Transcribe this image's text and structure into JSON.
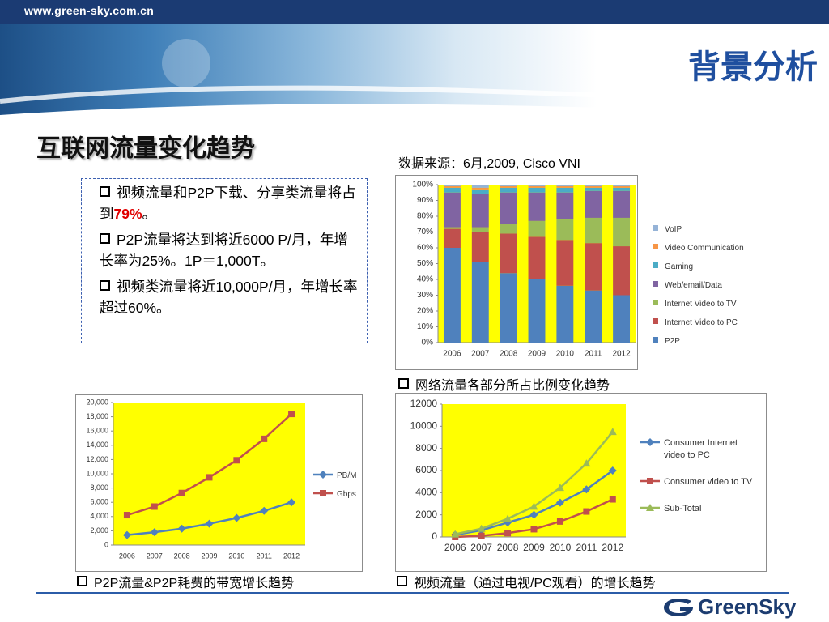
{
  "header": {
    "url": "www.green-sky.com.cn",
    "title": "背景分析"
  },
  "subtitle": "互联网流量变化趋势",
  "source": "数据来源：6月,2009, Cisco VNI",
  "bullets": [
    [
      "视频流量和P2P下载、分享类流量将占到",
      "79%",
      "。"
    ],
    [
      "P2P流量将达到将近6000 P/月，年增长率为25%。1P＝1,000T。"
    ],
    [
      "视频类流量将近10,000P/月，年增长率超过60%。"
    ]
  ],
  "captions": [
    "网络流量各部分所占比例变化趋势",
    "P2P流量&P2P耗费的带宽增长趋势",
    "视频流量（通过电视/PC观看）的增长趋势"
  ],
  "logo": "GreenSky",
  "chart_data": [
    {
      "type": "stacked_bar",
      "plot_color": "#ffff00",
      "categories": [
        "2006",
        "2007",
        "2008",
        "2009",
        "2010",
        "2011",
        "2012"
      ],
      "ylim": [
        0,
        100
      ],
      "yticks": [
        {
          "value": 0,
          "label": "0%"
        },
        {
          "value": 10,
          "label": "10%"
        },
        {
          "value": 20,
          "label": "20%"
        },
        {
          "value": 30,
          "label": "30%"
        },
        {
          "value": 40,
          "label": "40%"
        },
        {
          "value": 50,
          "label": "50%"
        },
        {
          "value": 60,
          "label": "60%"
        },
        {
          "value": 70,
          "label": "70%"
        },
        {
          "value": 80,
          "label": "80%"
        },
        {
          "value": 90,
          "label": "90%"
        },
        {
          "value": 100,
          "label": "100%"
        }
      ],
      "series": [
        {
          "name": "P2P",
          "color": "#4f81bd",
          "values": [
            60,
            51,
            44,
            40,
            36,
            33,
            30
          ]
        },
        {
          "name": "Internet Video to PC",
          "color": "#c0504d",
          "values": [
            12,
            19,
            25,
            27,
            29,
            30,
            31
          ]
        },
        {
          "name": "Internet Video to TV",
          "color": "#9bbb59",
          "values": [
            1,
            3,
            6,
            10,
            13,
            16,
            18
          ]
        },
        {
          "name": "Web/email/Data",
          "color": "#8064a2",
          "values": [
            22,
            21,
            20,
            18,
            17,
            17,
            17
          ]
        },
        {
          "name": "Gaming",
          "color": "#4bacc6",
          "values": [
            3,
            3,
            3,
            3,
            3,
            2,
            2
          ]
        },
        {
          "name": "Video Communication",
          "color": "#f79646",
          "values": [
            1,
            1,
            1,
            1,
            1,
            1,
            1
          ]
        },
        {
          "name": "VoIP",
          "color": "#95b3d7",
          "values": [
            1,
            2,
            1,
            1,
            1,
            1,
            1
          ]
        }
      ]
    },
    {
      "type": "line",
      "plot_color": "#ffff00",
      "categories": [
        "2006",
        "2007",
        "2008",
        "2009",
        "2010",
        "2011",
        "2012"
      ],
      "ylim": [
        0,
        20000
      ],
      "yticks": [
        0,
        {
          "value": 2000,
          "label": "2,000"
        },
        {
          "value": 4000,
          "label": "4,000"
        },
        {
          "value": 6000,
          "label": "6,000"
        },
        {
          "value": 8000,
          "label": "8,000"
        },
        {
          "value": 10000,
          "label": "10,000"
        },
        {
          "value": 12000,
          "label": "12,000"
        },
        {
          "value": 14000,
          "label": "14,000"
        },
        {
          "value": 16000,
          "label": "16,000"
        },
        {
          "value": 18000,
          "label": "18,000"
        },
        {
          "value": 20000,
          "label": "20,000"
        }
      ],
      "series": [
        {
          "name": "PB/M",
          "color": "#4f81bd",
          "marker": "diamond",
          "values": [
            1400,
            1800,
            2300,
            3000,
            3800,
            4800,
            6000
          ]
        },
        {
          "name": "Gbps",
          "color": "#c0504d",
          "marker": "square",
          "values": [
            4200,
            5400,
            7300,
            9500,
            11900,
            14900,
            18400
          ]
        }
      ]
    },
    {
      "type": "line",
      "plot_color": "#ffff00",
      "categories": [
        "2006",
        "2007",
        "2008",
        "2009",
        "2010",
        "2011",
        "2012"
      ],
      "ylim": [
        0,
        12000
      ],
      "yticks": [
        0,
        2000,
        4000,
        6000,
        8000,
        10000,
        12000
      ],
      "series": [
        {
          "name": "Consumer Internet video to PC",
          "color": "#4f81bd",
          "marker": "diamond",
          "values": [
            200,
            600,
            1300,
            2000,
            3100,
            4300,
            6000
          ]
        },
        {
          "name": "Consumer video to TV",
          "color": "#c0504d",
          "marker": "square",
          "values": [
            0,
            100,
            350,
            700,
            1400,
            2300,
            3400
          ]
        },
        {
          "name": "Sub-Total",
          "color": "#9bbb59",
          "marker": "triangle",
          "values": [
            250,
            750,
            1650,
            2750,
            4450,
            6650,
            9500
          ]
        }
      ]
    }
  ]
}
